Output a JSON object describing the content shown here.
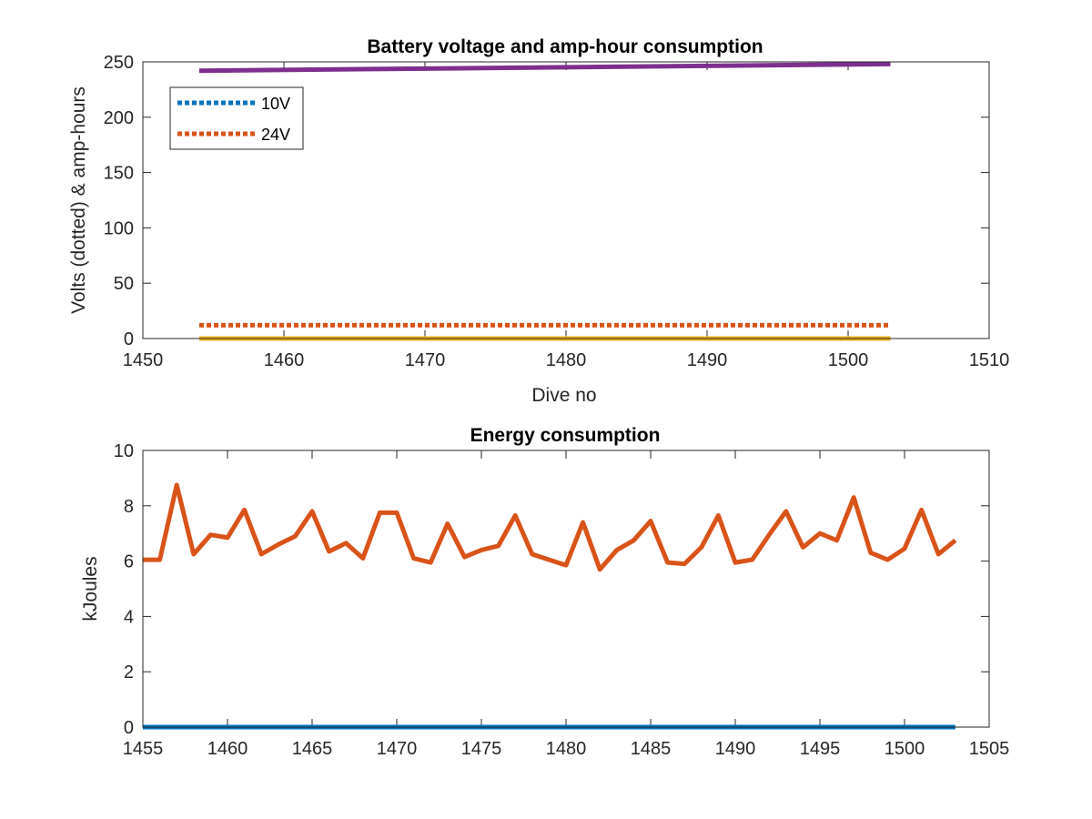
{
  "chart_data": [
    {
      "type": "line",
      "title": "Battery voltage and amp-hour consumption",
      "xlabel": "Dive no",
      "ylabel": "Volts (dotted) & amp-hours",
      "xlim": [
        1450,
        1510
      ],
      "ylim": [
        0,
        250
      ],
      "xticks": [
        1450,
        1460,
        1470,
        1480,
        1490,
        1500,
        1510
      ],
      "yticks": [
        0,
        50,
        100,
        150,
        200,
        250
      ],
      "grid": false,
      "legend_position": "top-left",
      "series": [
        {
          "name": "10V",
          "style": "dotted",
          "color": "#0072BD",
          "x": [
            1454,
            1503
          ],
          "y": [
            0,
            0
          ],
          "in_legend": true
        },
        {
          "name": "24V",
          "style": "dotted",
          "color": "#D95319",
          "x": [
            1454,
            1503
          ],
          "y": [
            12,
            12
          ],
          "in_legend": true
        },
        {
          "style": "solid",
          "color": "#EDB120",
          "x": [
            1454,
            1503
          ],
          "y": [
            0,
            0
          ],
          "in_legend": false
        },
        {
          "style": "solid",
          "color": "#7E2F8E",
          "x": [
            1454,
            1503
          ],
          "y": [
            242,
            248
          ],
          "in_legend": false
        }
      ]
    },
    {
      "type": "line",
      "title": "Energy consumption",
      "xlabel": "",
      "ylabel": "kJoules",
      "xlim": [
        1455,
        1505
      ],
      "ylim": [
        0,
        10
      ],
      "xticks": [
        1455,
        1460,
        1465,
        1470,
        1475,
        1480,
        1485,
        1490,
        1495,
        1500,
        1505
      ],
      "yticks": [
        0,
        2,
        4,
        6,
        8,
        10
      ],
      "grid": false,
      "series": [
        {
          "style": "solid",
          "color": "#0072BD",
          "x": [
            1455,
            1503
          ],
          "y": [
            0,
            0
          ]
        },
        {
          "style": "solid",
          "color": "#D95319",
          "x": [
            1455,
            1456,
            1457,
            1458,
            1459,
            1460,
            1461,
            1462,
            1463,
            1464,
            1465,
            1466,
            1467,
            1468,
            1469,
            1470,
            1471,
            1472,
            1473,
            1474,
            1475,
            1476,
            1477,
            1478,
            1479,
            1480,
            1481,
            1482,
            1483,
            1484,
            1485,
            1486,
            1487,
            1488,
            1489,
            1490,
            1491,
            1492,
            1493,
            1494,
            1495,
            1496,
            1497,
            1498,
            1499,
            1500,
            1501,
            1502,
            1503
          ],
          "y": [
            6.05,
            6.05,
            8.75,
            6.25,
            6.95,
            6.85,
            7.85,
            6.25,
            6.6,
            6.9,
            7.8,
            6.35,
            6.65,
            6.1,
            7.75,
            7.75,
            6.1,
            5.95,
            7.35,
            6.15,
            6.4,
            6.55,
            7.65,
            6.25,
            6.05,
            5.85,
            7.4,
            5.7,
            6.4,
            6.75,
            7.45,
            5.95,
            5.9,
            6.5,
            7.65,
            5.95,
            6.05,
            6.95,
            7.8,
            6.5,
            7.0,
            6.75,
            8.3,
            6.3,
            6.05,
            6.45,
            7.85,
            6.25,
            6.75
          ]
        }
      ]
    }
  ]
}
